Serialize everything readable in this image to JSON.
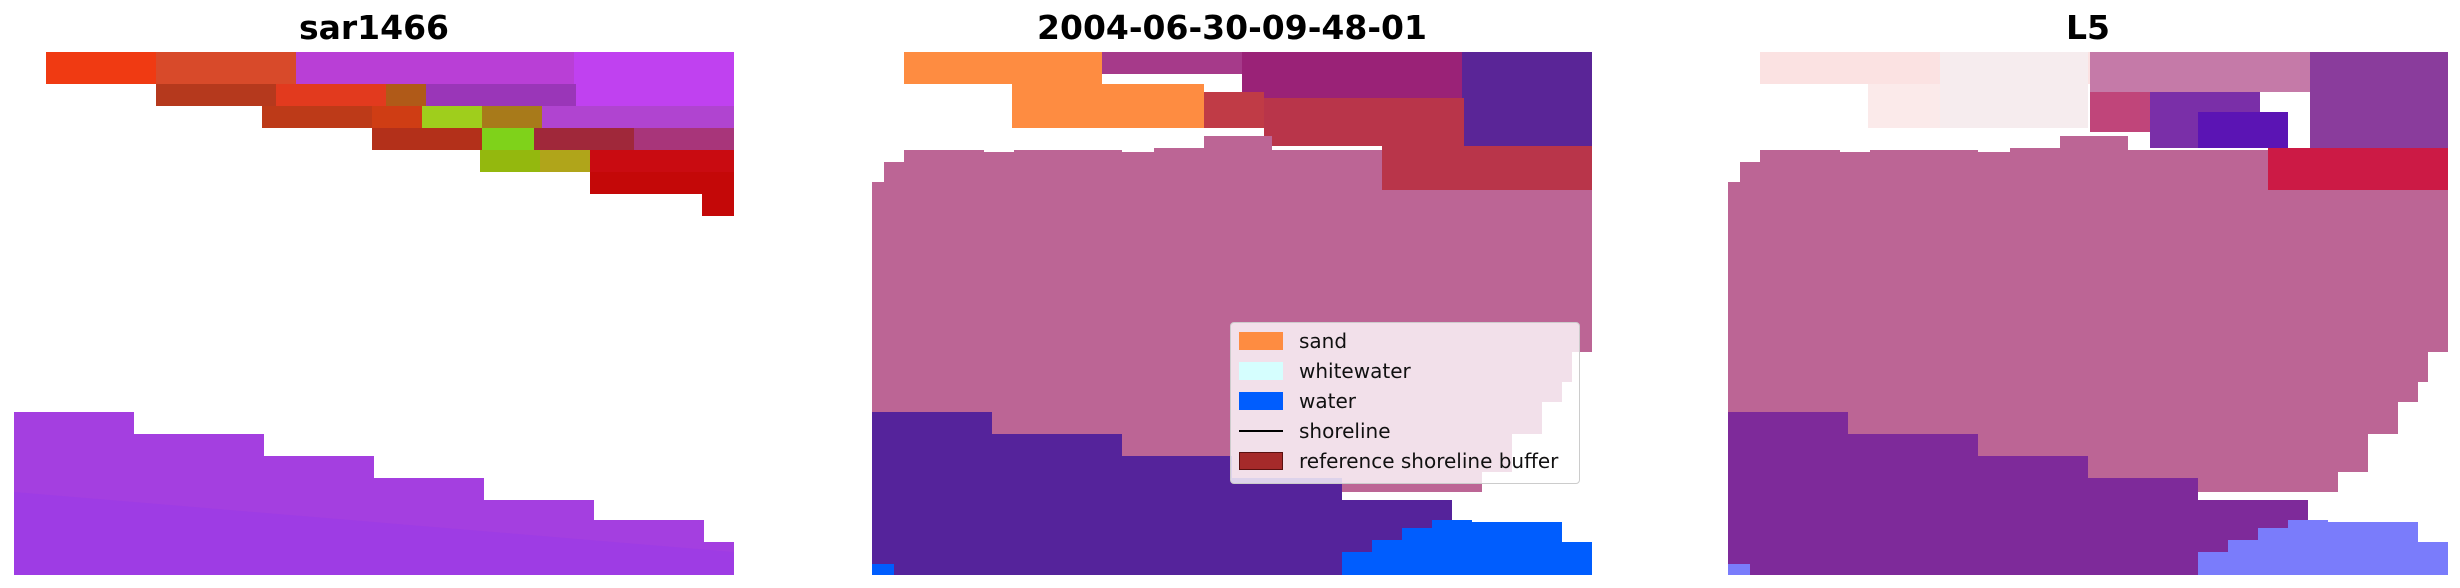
{
  "panels": [
    {
      "title": "sar1466"
    },
    {
      "title": "2004-06-30-09-48-01"
    },
    {
      "title": "L5"
    }
  ],
  "legend": {
    "items": [
      {
        "label": "sand",
        "color": "#fe8c41",
        "kind": "patch"
      },
      {
        "label": "whitewater",
        "color": "#d5fefe",
        "kind": "patch"
      },
      {
        "label": "water",
        "color": "#005dfe",
        "kind": "patch"
      },
      {
        "label": "shoreline",
        "color": "#000000",
        "kind": "line"
      },
      {
        "label": "reference shoreline buffer",
        "color": "#a52a2a",
        "kind": "patch"
      }
    ]
  },
  "colors": {
    "sand": "#fe8c41",
    "water": "#005dfe",
    "buffer_pink": "#bc6595",
    "deep_purple": "#55239b",
    "red_band": "#b9354a",
    "violet": "#a43fe0"
  }
}
